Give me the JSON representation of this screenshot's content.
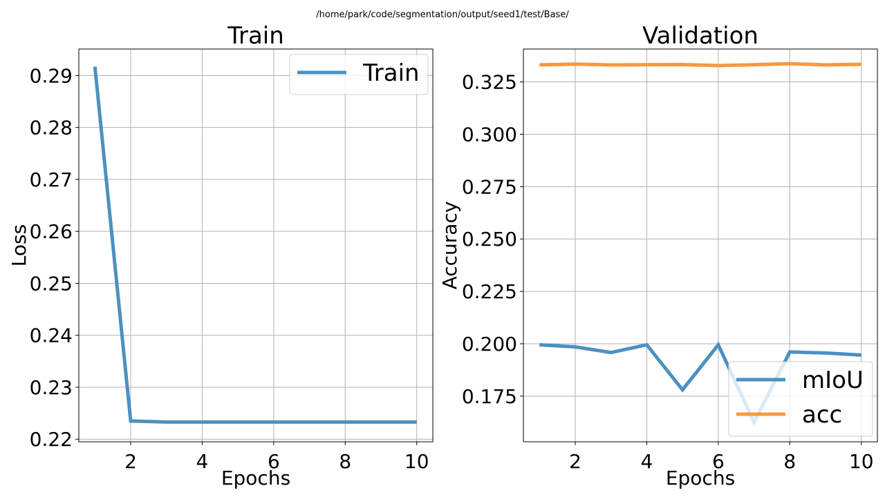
{
  "figure": {
    "suptitle": "/home/park/code/segmentation/output/seed1/test/Base/"
  },
  "colors": {
    "blue": "#4c90c0",
    "orange": "#f7993f",
    "grid": "#b0b0b0",
    "axes": "#000000"
  },
  "chart_data": [
    {
      "type": "line",
      "title": "Train",
      "xlabel": "Epochs",
      "ylabel": "Loss",
      "xlim": [
        0.55,
        10.45
      ],
      "ylim": [
        0.2195,
        0.2951
      ],
      "xticks": [
        2,
        4,
        6,
        8,
        10
      ],
      "yticks": [
        0.22,
        0.23,
        0.24,
        0.25,
        0.26,
        0.27,
        0.28,
        0.29
      ],
      "ytick_labels": [
        "0.22",
        "0.23",
        "0.24",
        "0.25",
        "0.26",
        "0.27",
        "0.28",
        "0.29"
      ],
      "grid": true,
      "legend_position": "upper right",
      "x": [
        1,
        2,
        3,
        4,
        5,
        6,
        7,
        8,
        9,
        10
      ],
      "series": [
        {
          "name": "Train",
          "color": "#4c90c0",
          "values": [
            0.2917,
            0.2235,
            0.2233,
            0.2233,
            0.2233,
            0.2233,
            0.2233,
            0.2233,
            0.2233,
            0.2233
          ]
        }
      ]
    },
    {
      "type": "line",
      "title": "Validation",
      "xlabel": "Epochs",
      "ylabel": "Accuracy",
      "xlim": [
        0.55,
        10.45
      ],
      "ylim": [
        0.1532,
        0.3407
      ],
      "xticks": [
        2,
        4,
        6,
        8,
        10
      ],
      "yticks": [
        0.175,
        0.2,
        0.225,
        0.25,
        0.275,
        0.3,
        0.325
      ],
      "ytick_labels": [
        "0.175",
        "0.200",
        "0.225",
        "0.250",
        "0.275",
        "0.300",
        "0.325"
      ],
      "grid": true,
      "legend_position": "lower right",
      "x": [
        1,
        2,
        3,
        4,
        5,
        6,
        7,
        8,
        9,
        10
      ],
      "series": [
        {
          "name": "mIoU",
          "color": "#4c90c0",
          "values": [
            0.1995,
            0.1985,
            0.1958,
            0.1995,
            0.178,
            0.1995,
            0.1625,
            0.1961,
            0.1956,
            0.1946
          ]
        },
        {
          "name": "acc",
          "color": "#f7993f",
          "values": [
            0.3331,
            0.3335,
            0.3331,
            0.3332,
            0.3333,
            0.3328,
            0.3332,
            0.3337,
            0.3331,
            0.3334
          ]
        }
      ]
    }
  ]
}
